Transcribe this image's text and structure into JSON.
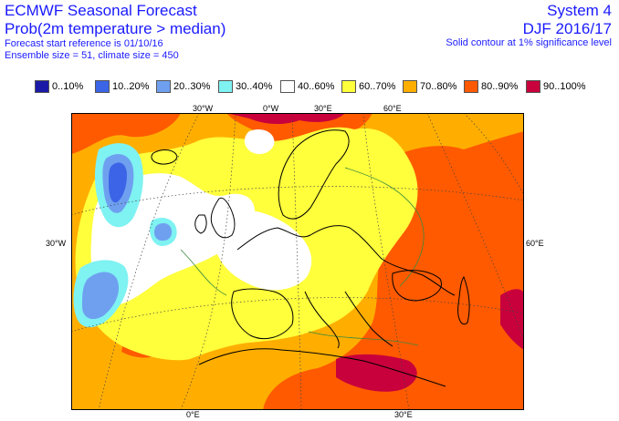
{
  "header": {
    "title": "ECMWF Seasonal Forecast",
    "subtitle": "Prob(2m temperature > median)",
    "start_ref": "Forecast start reference is 01/10/16",
    "ensemble": "Ensemble size = 51, climate size = 450",
    "system": "System 4",
    "period": "DJF 2016/17",
    "significance": "Solid contour at 1% significance level"
  },
  "legend": [
    {
      "label": "0..10%",
      "color": "#1a1aa6"
    },
    {
      "label": "10..20%",
      "color": "#3c64e6"
    },
    {
      "label": "20..30%",
      "color": "#6fa0f0"
    },
    {
      "label": "30..40%",
      "color": "#7ff2f2"
    },
    {
      "label": "40..60%",
      "color": "#ffffff"
    },
    {
      "label": "60..70%",
      "color": "#ffff3c"
    },
    {
      "label": "70..80%",
      "color": "#ffae00"
    },
    {
      "label": "80..90%",
      "color": "#ff5a00"
    },
    {
      "label": "90..100%",
      "color": "#c8003c"
    }
  ],
  "axes": {
    "top": [
      "30°W",
      "0°W",
      "30°E",
      "60°E"
    ],
    "left": "30°W",
    "right": "60°E",
    "bottom": [
      "0°E",
      "30°E"
    ]
  }
}
